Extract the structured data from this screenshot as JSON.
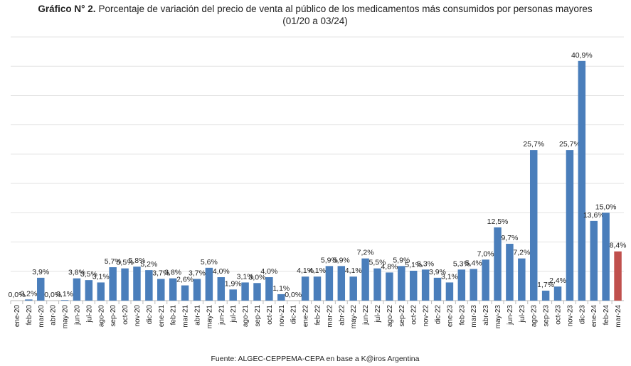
{
  "chart_data": {
    "type": "bar",
    "title_label": "Gráfico N° 2.",
    "title": "Porcentaje de variación del precio de venta al público de los medicamentos más consumidos por personas mayores",
    "subtitle": "(01/20 a 03/24)",
    "source": "Fuente: ALGEC-CEPPEMA-CEPA en base a K@iros Argentina",
    "categories": [
      "ene-20",
      "feb-20",
      "mar-20",
      "abr-20",
      "may-20",
      "jun-20",
      "jul-20",
      "ago-20",
      "sep-20",
      "oct-20",
      "nov-20",
      "dic-20",
      "ene-21",
      "feb-21",
      "mar-21",
      "abr-21",
      "may-21",
      "jun-21",
      "jul-21",
      "ago-21",
      "sep-21",
      "oct-21",
      "nov-21",
      "dic-21",
      "ene-22",
      "feb-22",
      "mar-22",
      "abr-22",
      "may-22",
      "jun-22",
      "jul-22",
      "ago-22",
      "sep-22",
      "oct-22",
      "nov-22",
      "dic-22",
      "ene-23",
      "feb-23",
      "mar-23",
      "abr-23",
      "may-23",
      "jun-23",
      "jul-23",
      "ago-23",
      "sep-23",
      "oct-23",
      "nov-23",
      "dic-23",
      "ene-24",
      "feb-24",
      "mar-24"
    ],
    "values": [
      0.0,
      0.2,
      3.9,
      0.0,
      0.1,
      3.8,
      3.5,
      3.1,
      5.7,
      5.5,
      5.8,
      5.2,
      3.7,
      3.8,
      2.6,
      3.7,
      5.6,
      4.0,
      1.9,
      3.1,
      3.0,
      4.0,
      1.1,
      0.0,
      4.1,
      4.1,
      5.9,
      5.9,
      4.1,
      7.2,
      5.5,
      4.8,
      5.9,
      5.1,
      5.3,
      3.9,
      3.1,
      5.3,
      5.4,
      7.0,
      12.5,
      9.7,
      7.2,
      25.7,
      1.7,
      2.4,
      25.7,
      40.9,
      13.6,
      15.0,
      8.4
    ],
    "value_labels": [
      "0,0%",
      "0,2%",
      "3,9%",
      "0,0%",
      "0,1%",
      "3,8%",
      "3,5%",
      "3,1%",
      "5,7%",
      "5,5%",
      "5,8%",
      "5,2%",
      "3,7%",
      "3,8%",
      "2,6%",
      "3,7%",
      "5,6%",
      "4,0%",
      "1,9%",
      "3,1%",
      "3,0%",
      "4,0%",
      "1,1%",
      "0,0%",
      "4,1%",
      "4,1%",
      "5,9%",
      "5,9%",
      "4,1%",
      "7,2%",
      "5,5%",
      "4,8%",
      "5,9%",
      "5,1%",
      "5,3%",
      "3,9%",
      "3,1%",
      "5,3%",
      "5,4%",
      "7,0%",
      "12,5%",
      "9,7%",
      "7,2%",
      "25,7%",
      "1,7%",
      "2,4%",
      "25,7%",
      "40,9%",
      "13,6%",
      "15,0%",
      "8,4%"
    ],
    "colors": [
      "#4a7ebb",
      "#4a7ebb",
      "#4a7ebb",
      "#4a7ebb",
      "#4a7ebb",
      "#4a7ebb",
      "#4a7ebb",
      "#4a7ebb",
      "#4a7ebb",
      "#4a7ebb",
      "#4a7ebb",
      "#4a7ebb",
      "#4a7ebb",
      "#4a7ebb",
      "#4a7ebb",
      "#4a7ebb",
      "#4a7ebb",
      "#4a7ebb",
      "#4a7ebb",
      "#4a7ebb",
      "#4a7ebb",
      "#4a7ebb",
      "#4a7ebb",
      "#4a7ebb",
      "#4a7ebb",
      "#4a7ebb",
      "#4a7ebb",
      "#4a7ebb",
      "#4a7ebb",
      "#4a7ebb",
      "#4a7ebb",
      "#4a7ebb",
      "#4a7ebb",
      "#4a7ebb",
      "#4a7ebb",
      "#4a7ebb",
      "#4a7ebb",
      "#4a7ebb",
      "#4a7ebb",
      "#4a7ebb",
      "#4a7ebb",
      "#4a7ebb",
      "#4a7ebb",
      "#4a7ebb",
      "#4a7ebb",
      "#4a7ebb",
      "#4a7ebb",
      "#4a7ebb",
      "#4a7ebb",
      "#4a7ebb",
      "#c0504d"
    ],
    "ylim": [
      0,
      45
    ],
    "yticks": [
      0,
      5,
      10,
      15,
      20,
      25,
      30,
      35,
      40,
      45
    ],
    "grid": true
  }
}
